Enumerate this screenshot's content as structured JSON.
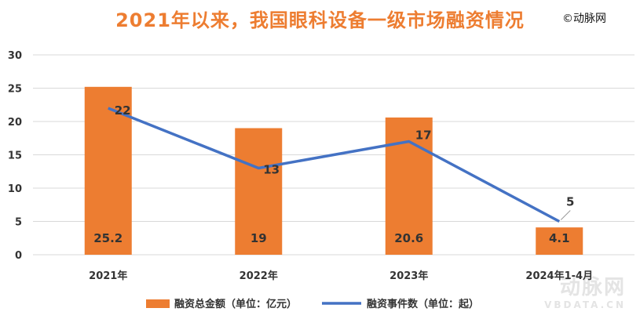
{
  "watermark_top": "©动脉网",
  "watermark_bottom": "动脉网",
  "watermark_bottom_sub": "VBDATA.CN",
  "colors": {
    "bar": "#ed7d31",
    "line": "#4472c4",
    "title": "#ed7d31",
    "grid": "#d9d9d9"
  },
  "chart_data": {
    "type": "bar",
    "title": "2021年以来，我国眼科设备一级市场融资情况",
    "categories": [
      "2021年",
      "2022年",
      "2023年",
      "2024年1-4月"
    ],
    "ylim": [
      0,
      30
    ],
    "yticks": [
      0,
      5,
      10,
      15,
      20,
      25,
      30
    ],
    "grid": true,
    "legend": "bottom",
    "series": [
      {
        "name": "融资总金额（单位：亿元）",
        "type": "bar",
        "values": [
          25.2,
          19,
          20.6,
          4.1
        ],
        "labels": [
          "25.2",
          "19",
          "20.6",
          "4.1"
        ]
      },
      {
        "name": "融资事件数（单位：起）",
        "type": "line",
        "values": [
          22,
          13,
          17,
          5
        ],
        "labels": [
          "22",
          "13",
          "17",
          "5"
        ]
      }
    ]
  }
}
